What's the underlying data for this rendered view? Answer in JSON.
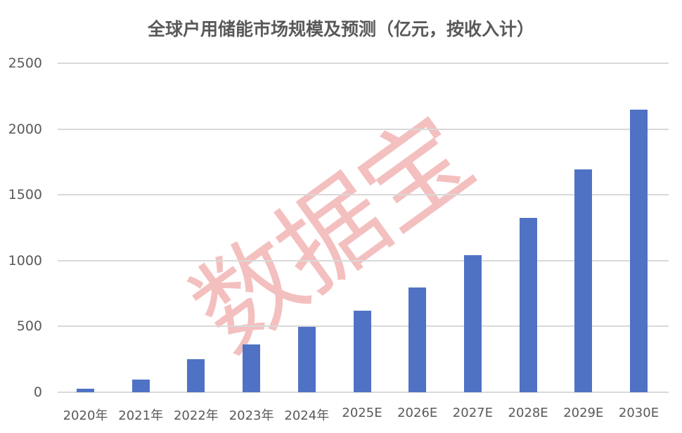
{
  "chart_data": {
    "type": "bar",
    "title": "全球户用储能市场规模及预测（亿元，按收入计）",
    "xlabel": "",
    "ylabel": "",
    "ylim": [
      0,
      2500
    ],
    "yticks": [
      "0",
      "500",
      "1000",
      "1500",
      "2000",
      "2500"
    ],
    "grid": true,
    "legend": null,
    "categories": [
      "2020年",
      "2021年",
      "2022年",
      "2023年",
      "2024年",
      "2025E",
      "2026E",
      "2027E",
      "2028E",
      "2029E",
      "2030E"
    ],
    "values": [
      27,
      96,
      250,
      362,
      496,
      622,
      798,
      1043,
      1324,
      1691,
      2149
    ],
    "bar_color": "#4f72c4",
    "watermark": "数据宝"
  }
}
